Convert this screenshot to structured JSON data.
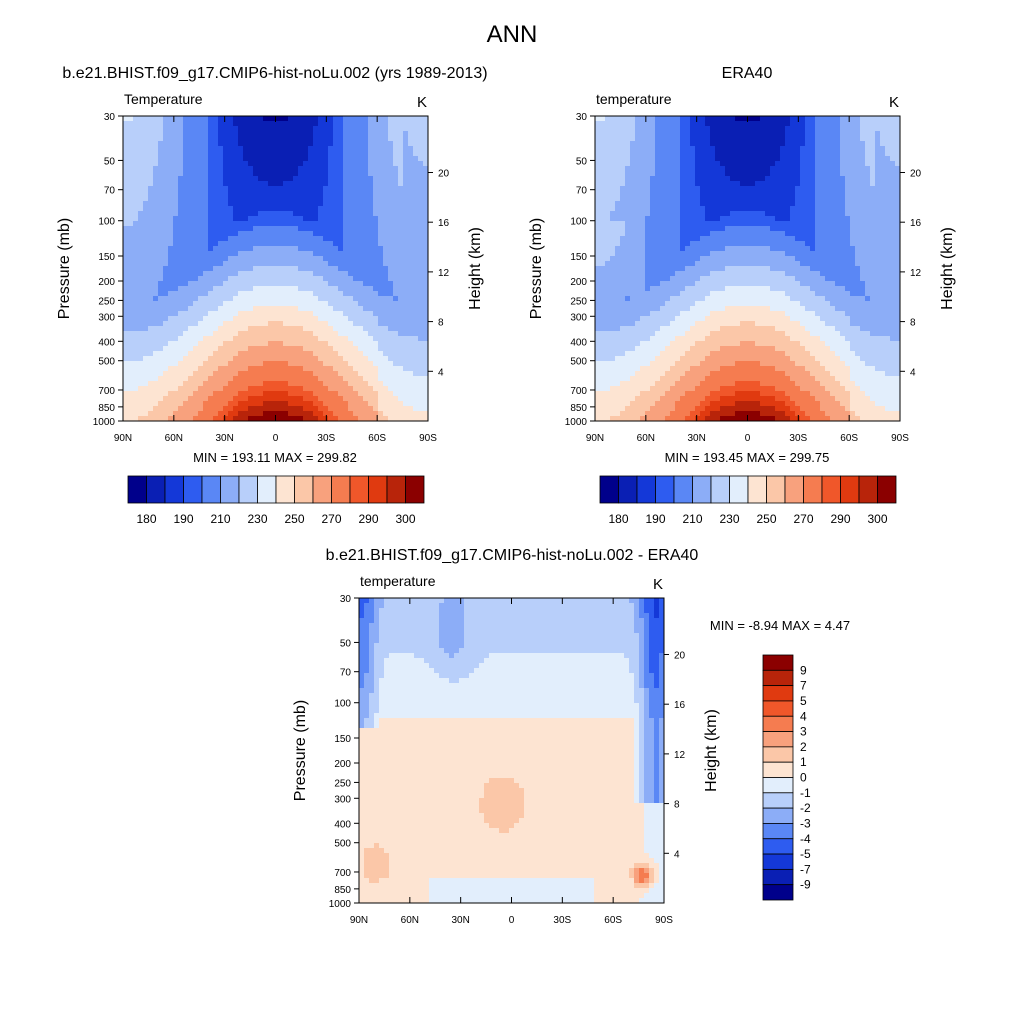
{
  "title": "ANN",
  "panels": [
    {
      "id": "model",
      "title": "b.e21.BHIST.f09_g17.CMIP6-hist-noLu.002 (yrs 1989-2013)",
      "variable": "Temperature",
      "units": "K",
      "stats": "MIN = 193.11  MAX = 299.82"
    },
    {
      "id": "obs",
      "title": "ERA40",
      "variable": "temperature",
      "units": "K",
      "stats": "MIN = 193.45  MAX = 299.75"
    },
    {
      "id": "diff",
      "title": "b.e21.BHIST.f09_g17.CMIP6-hist-noLu.002 - ERA40",
      "variable": "temperature",
      "units": "K",
      "stats": "MIN =  -8.94  MAX =   4.47"
    }
  ],
  "chart_data": [
    {
      "type": "heatmap",
      "title": "b.e21.BHIST.f09_g17.CMIP6-hist-noLu.002 (yrs 1989-2013)",
      "variable": "Temperature",
      "units": "K",
      "ylabel": "Pressure (mb)",
      "y2label": "Height (km)",
      "x_ticks": [
        "90N",
        "60N",
        "30N",
        "0",
        "30S",
        "60S",
        "90S"
      ],
      "y_ticks": [
        "30",
        "50",
        "70",
        "100",
        "150",
        "200",
        "250",
        "300",
        "400",
        "500",
        "700",
        "850",
        "1000"
      ],
      "y2_ticks": [
        "20",
        "16",
        "12",
        "8",
        "4"
      ],
      "min": 193.11,
      "max": 299.82,
      "colorbar_labels": [
        "180",
        "190",
        "210",
        "230",
        "250",
        "270",
        "290",
        "300"
      ],
      "colors": [
        "#00008b",
        "#0a1fb4",
        "#1438d8",
        "#2e5cf0",
        "#5a87f5",
        "#8cadf7",
        "#b8cffa",
        "#e2eefc",
        "#fde4d2",
        "#fbc7a8",
        "#f8a17d",
        "#f57c50",
        "#f0572a",
        "#e03a10",
        "#b8240a",
        "#8b0000"
      ]
    },
    {
      "type": "heatmap",
      "title": "ERA40",
      "variable": "temperature",
      "units": "K",
      "ylabel": "Pressure (mb)",
      "y2label": "Height (km)",
      "x_ticks": [
        "90N",
        "60N",
        "30N",
        "0",
        "30S",
        "60S",
        "90S"
      ],
      "y_ticks": [
        "30",
        "50",
        "70",
        "100",
        "150",
        "200",
        "250",
        "300",
        "400",
        "500",
        "700",
        "850",
        "1000"
      ],
      "y2_ticks": [
        "20",
        "16",
        "12",
        "8",
        "4"
      ],
      "min": 193.45,
      "max": 299.75,
      "colorbar_labels": [
        "180",
        "190",
        "210",
        "230",
        "250",
        "270",
        "290",
        "300"
      ],
      "colors": [
        "#00008b",
        "#0a1fb4",
        "#1438d8",
        "#2e5cf0",
        "#5a87f5",
        "#8cadf7",
        "#b8cffa",
        "#e2eefc",
        "#fde4d2",
        "#fbc7a8",
        "#f8a17d",
        "#f57c50",
        "#f0572a",
        "#e03a10",
        "#b8240a",
        "#8b0000"
      ]
    },
    {
      "type": "heatmap",
      "title": "b.e21.BHIST.f09_g17.CMIP6-hist-noLu.002 - ERA40",
      "variable": "temperature",
      "units": "K",
      "ylabel": "Pressure (mb)",
      "y2label": "Height (km)",
      "x_ticks": [
        "90N",
        "60N",
        "30N",
        "0",
        "30S",
        "60S",
        "90S"
      ],
      "y_ticks": [
        "30",
        "50",
        "70",
        "100",
        "150",
        "200",
        "250",
        "300",
        "400",
        "500",
        "700",
        "850",
        "1000"
      ],
      "y2_ticks": [
        "20",
        "16",
        "12",
        "8",
        "4"
      ],
      "min": -8.94,
      "max": 4.47,
      "colorbar_labels": [
        "9",
        "7",
        "5",
        "4",
        "3",
        "2",
        "1",
        "0",
        "-1",
        "-2",
        "-3",
        "-4",
        "-5",
        "-7",
        "-9"
      ],
      "colors": [
        "#8b0000",
        "#b8240a",
        "#e03a10",
        "#f0572a",
        "#f57c50",
        "#f8a17d",
        "#fbc7a8",
        "#fde4d2",
        "#e2eefc",
        "#b8cffa",
        "#8cadf7",
        "#5a87f5",
        "#2e5cf0",
        "#1438d8",
        "#0a1fb4",
        "#00008b"
      ]
    }
  ]
}
